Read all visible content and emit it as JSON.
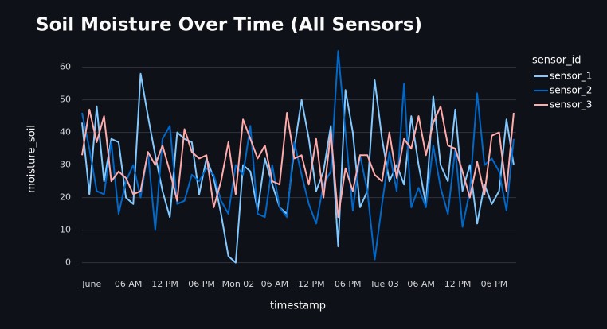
{
  "chart_data": {
    "type": "line",
    "title": "Soil Moisture Over Time (All Sensors)",
    "x_label": "timestamp",
    "y_label": "moisture_soil",
    "legend_title": "sensor_id",
    "legend": "right",
    "grid": true,
    "x": [
      -1.6,
      -0.4,
      0.8,
      2,
      3.2,
      4.4,
      5.6,
      6.8,
      8,
      9.2,
      10.4,
      11.6,
      12.8,
      14,
      15.2,
      16.4,
      17.6,
      18.8,
      20,
      21.2,
      22.4,
      23.6,
      24.8,
      26,
      27.2,
      28.4,
      29.6,
      30.8,
      32,
      33.2,
      34.4,
      35.6,
      36.8,
      38,
      39.2,
      40.4,
      41.6,
      42.8,
      44,
      45.2,
      46.4,
      47.6,
      48.8,
      50,
      51.2,
      52.4,
      53.6,
      54.8,
      56,
      57.2,
      58.4,
      59.6,
      60.8,
      62,
      63.2,
      64.4,
      65.6,
      66.8,
      68,
      69.2
    ],
    "xlim": [
      -1.6,
      69.6
    ],
    "xticks": [
      {
        "value": 0,
        "label": "June"
      },
      {
        "value": 6,
        "label": "06 AM"
      },
      {
        "value": 12,
        "label": "12 PM"
      },
      {
        "value": 18,
        "label": "06 PM"
      },
      {
        "value": 24,
        "label": "Mon 02"
      },
      {
        "value": 30,
        "label": "06 AM"
      },
      {
        "value": 36,
        "label": "12 PM"
      },
      {
        "value": 42,
        "label": "06 PM"
      },
      {
        "value": 48,
        "label": "Tue 03"
      },
      {
        "value": 54,
        "label": "06 AM"
      },
      {
        "value": 60,
        "label": "12 PM"
      },
      {
        "value": 66,
        "label": "06 PM"
      }
    ],
    "ylim": [
      -3.5,
      66
    ],
    "yticks": [
      0,
      10,
      20,
      30,
      40,
      50,
      60
    ],
    "series": [
      {
        "name": "sensor_1",
        "color": "#83c9ff",
        "values": [
          43,
          21,
          48,
          25,
          38,
          37,
          20,
          18,
          58,
          45,
          33,
          22,
          14,
          40,
          38,
          37,
          21,
          32,
          26,
          15,
          2,
          0,
          30,
          28,
          16,
          32,
          24,
          17,
          15,
          35,
          50,
          38,
          22,
          28,
          42,
          5,
          53,
          40,
          17,
          22,
          56,
          38,
          25,
          30,
          24,
          45,
          30,
          18,
          51,
          30,
          25,
          47,
          22,
          30,
          12,
          24,
          18,
          22,
          44,
          30
        ]
      },
      {
        "name": "sensor_2",
        "color": "#0068c9",
        "values": [
          46,
          35,
          22,
          21,
          37,
          15,
          25,
          30,
          20,
          34,
          10,
          38,
          42,
          18,
          19,
          27,
          25,
          29,
          27,
          19,
          15,
          30,
          27,
          42,
          15,
          14,
          30,
          17,
          14,
          37,
          27,
          18,
          12,
          24,
          28,
          65,
          40,
          16,
          33,
          22,
          1,
          18,
          34,
          22,
          55,
          17,
          23,
          17,
          36,
          23,
          15,
          35,
          11,
          22,
          52,
          30,
          32,
          28,
          16,
          38
        ]
      },
      {
        "name": "sensor_3",
        "color": "#ffabab",
        "values": [
          33,
          47,
          37,
          45,
          25,
          28,
          26,
          21,
          22,
          34,
          30,
          36,
          28,
          19,
          41,
          34,
          32,
          33,
          17,
          25,
          37,
          21,
          44,
          38,
          32,
          36,
          25,
          24,
          46,
          32,
          33,
          24,
          38,
          20,
          40,
          14,
          29,
          22,
          33,
          33,
          27,
          25,
          40,
          26,
          38,
          35,
          45,
          33,
          43,
          48,
          36,
          35,
          28,
          20,
          31,
          21,
          39,
          40,
          22,
          46
        ]
      }
    ]
  }
}
